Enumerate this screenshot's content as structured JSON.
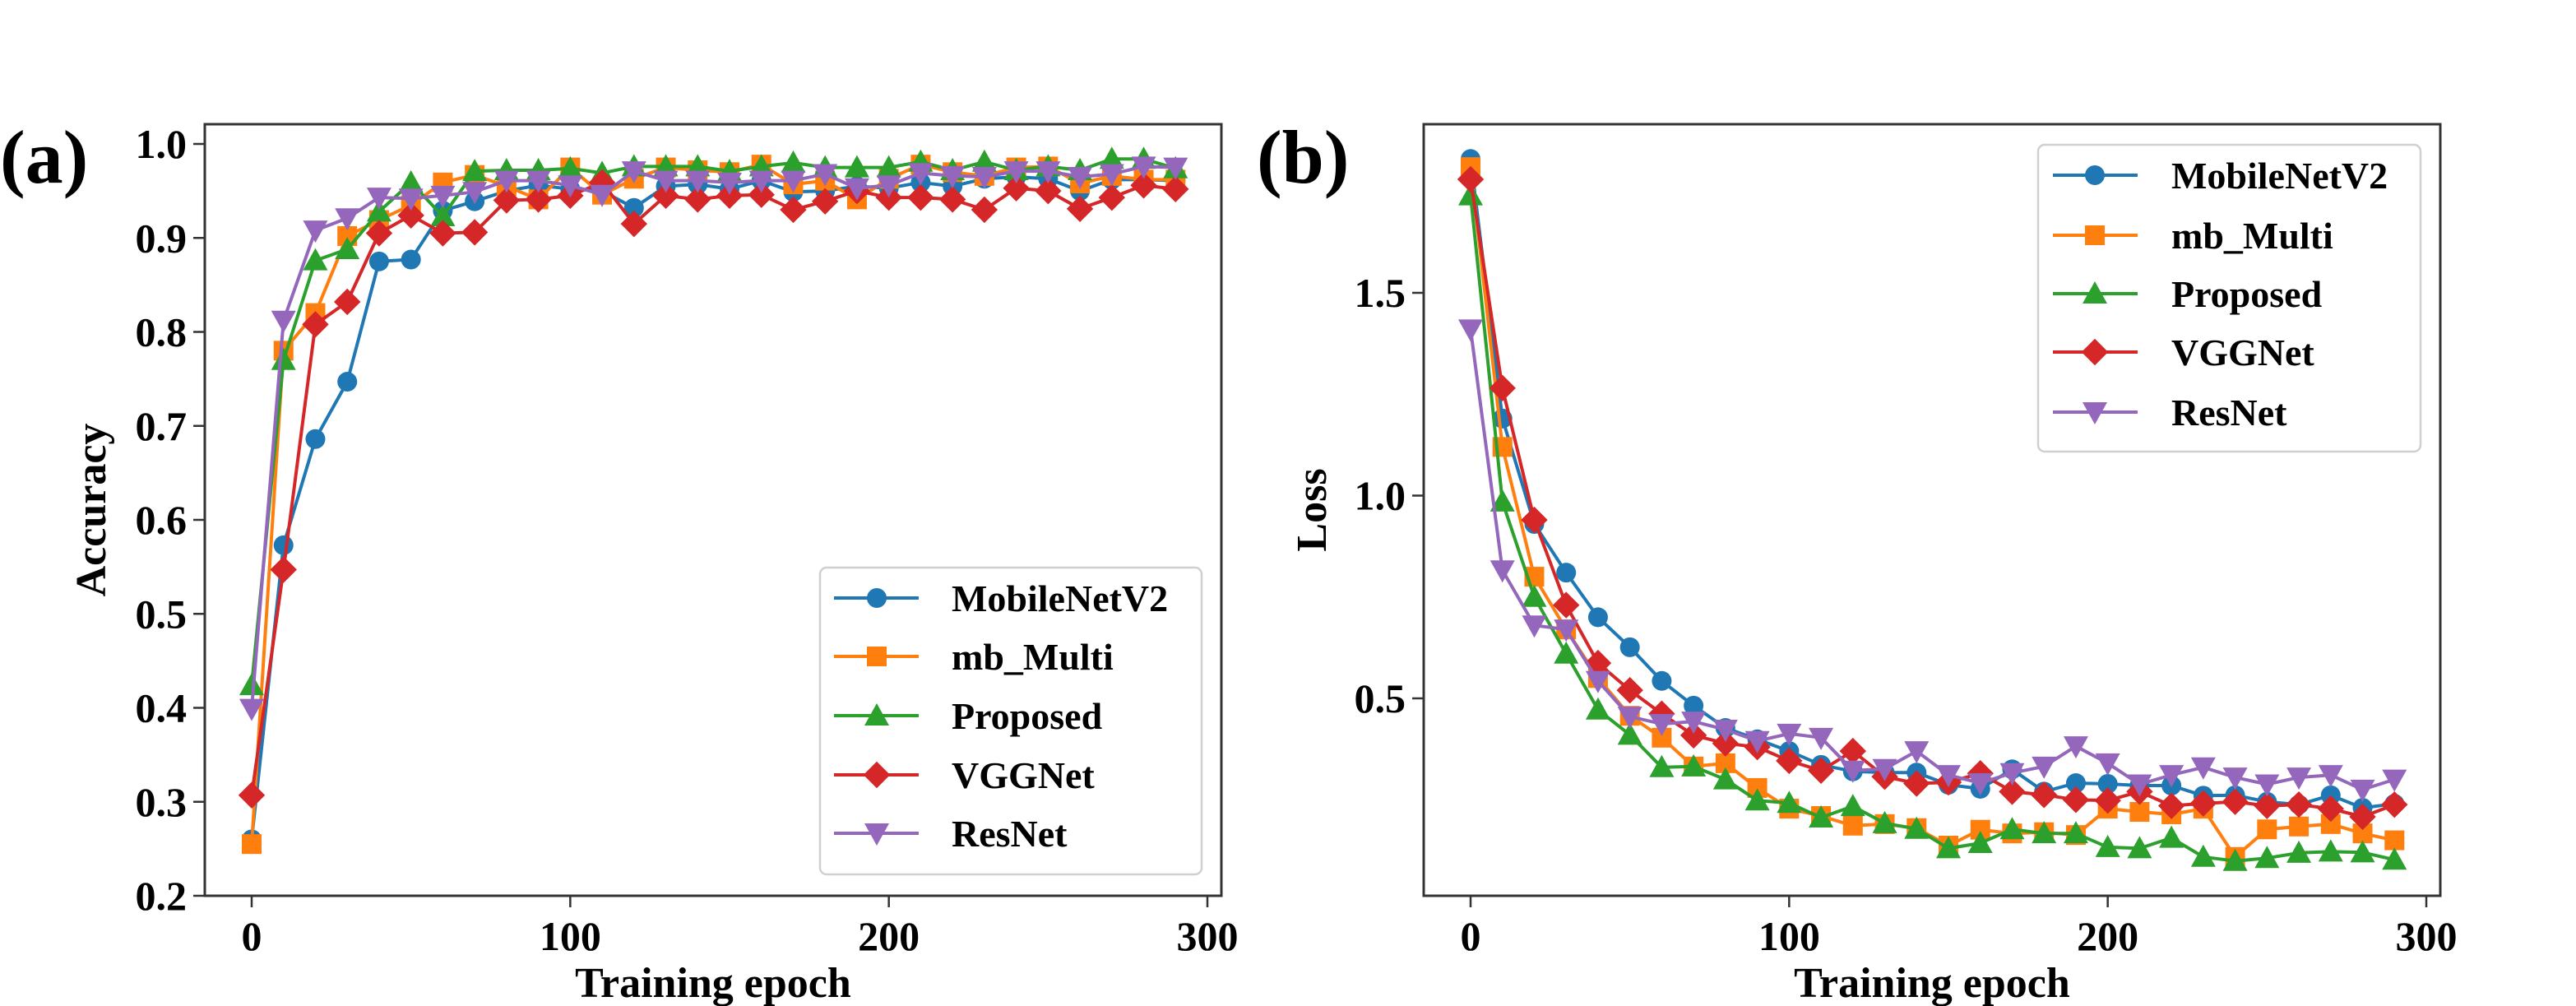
{
  "figure": {
    "panels": [
      "(a)",
      "(b)"
    ]
  },
  "colors": {
    "MobileNetV2": "#1f77b4",
    "mb_Multi": "#ff7f0e",
    "Proposed": "#2ca02c",
    "VGGNet": "#d62728",
    "ResNet": "#9467bd"
  },
  "chart_data": [
    {
      "panel_label": "(a)",
      "type": "line",
      "title": "",
      "xlabel": "Training epoch",
      "ylabel": "Accuracy",
      "xlim": [
        -15,
        305
      ],
      "ylim": [
        0.2,
        1.02
      ],
      "xticks": [
        0,
        100,
        200,
        300
      ],
      "xtick_labels": [
        "0",
        "100",
        "200",
        "300"
      ],
      "yticks": [
        0.2,
        0.3,
        0.4,
        0.5,
        0.6,
        0.7,
        0.8,
        0.9,
        1.0
      ],
      "ytick_labels": [
        "0.2",
        "0.3",
        "0.4",
        "0.5",
        "0.6",
        "0.7",
        "0.8",
        "0.9",
        "1.0"
      ],
      "grid": false,
      "legend_position": "lower-right",
      "x": [
        0,
        10,
        20,
        30,
        40,
        50,
        60,
        70,
        80,
        90,
        100,
        110,
        120,
        130,
        140,
        150,
        160,
        170,
        180,
        190,
        200,
        210,
        220,
        230,
        240,
        250,
        260,
        270,
        280,
        290
      ],
      "series": [
        {
          "name": "MobileNetV2",
          "marker": "circle",
          "values": [
            0.26,
            0.573,
            0.686,
            0.747,
            0.875,
            0.877,
            0.929,
            0.939,
            0.95,
            0.956,
            0.952,
            0.95,
            0.932,
            0.955,
            0.957,
            0.952,
            0.961,
            0.949,
            0.95,
            0.955,
            0.953,
            0.959,
            0.955,
            0.963,
            0.965,
            0.963,
            0.95,
            0.962,
            0.962,
            0.961
          ]
        },
        {
          "name": "mb_Multi",
          "marker": "square",
          "values": [
            0.255,
            0.78,
            0.82,
            0.902,
            0.919,
            0.935,
            0.959,
            0.967,
            0.955,
            0.941,
            0.975,
            0.946,
            0.963,
            0.975,
            0.972,
            0.97,
            0.978,
            0.957,
            0.961,
            0.941,
            0.963,
            0.978,
            0.97,
            0.966,
            0.975,
            0.976,
            0.958,
            0.966,
            0.962,
            0.962
          ]
        },
        {
          "name": "Proposed",
          "marker": "triangle-up",
          "values": [
            0.424,
            0.77,
            0.876,
            0.888,
            0.928,
            0.959,
            0.923,
            0.971,
            0.972,
            0.972,
            0.974,
            0.969,
            0.976,
            0.976,
            0.976,
            0.971,
            0.976,
            0.98,
            0.975,
            0.975,
            0.975,
            0.981,
            0.972,
            0.981,
            0.972,
            0.976,
            0.972,
            0.984,
            0.984,
            0.974
          ]
        },
        {
          "name": "VGGNet",
          "marker": "diamond",
          "values": [
            0.307,
            0.547,
            0.808,
            0.832,
            0.905,
            0.924,
            0.905,
            0.906,
            0.94,
            0.941,
            0.945,
            0.959,
            0.915,
            0.945,
            0.941,
            0.945,
            0.946,
            0.93,
            0.939,
            0.95,
            0.943,
            0.943,
            0.941,
            0.93,
            0.953,
            0.95,
            0.931,
            0.943,
            0.956,
            0.952
          ]
        },
        {
          "name": "ResNet",
          "marker": "triangle-down",
          "values": [
            0.399,
            0.812,
            0.908,
            0.921,
            0.943,
            0.942,
            0.945,
            0.949,
            0.961,
            0.961,
            0.956,
            0.946,
            0.971,
            0.961,
            0.961,
            0.959,
            0.961,
            0.961,
            0.968,
            0.953,
            0.956,
            0.969,
            0.966,
            0.965,
            0.971,
            0.971,
            0.965,
            0.968,
            0.976,
            0.975
          ]
        }
      ]
    },
    {
      "panel_label": "(b)",
      "type": "line",
      "title": "",
      "xlabel": "Training epoch",
      "ylabel": "Loss",
      "xlim": [
        -15,
        305
      ],
      "ylim": [
        0.015,
        1.916
      ],
      "xticks": [
        0,
        100,
        200,
        300
      ],
      "xtick_labels": [
        "0",
        "100",
        "200",
        "300"
      ],
      "yticks": [
        0.5,
        1.0,
        1.5
      ],
      "ytick_labels": [
        "0.5",
        "1.0",
        "1.5"
      ],
      "grid": false,
      "legend_position": "upper-right",
      "x": [
        0,
        10,
        20,
        30,
        40,
        50,
        60,
        70,
        80,
        90,
        100,
        110,
        120,
        130,
        140,
        150,
        160,
        170,
        180,
        190,
        200,
        210,
        220,
        230,
        240,
        250,
        260,
        270,
        280,
        290
      ],
      "series": [
        {
          "name": "MobileNetV2",
          "marker": "circle",
          "values": [
            1.83,
            1.19,
            0.93,
            0.81,
            0.7,
            0.626,
            0.543,
            0.482,
            0.427,
            0.399,
            0.37,
            0.336,
            0.32,
            0.317,
            0.317,
            0.287,
            0.277,
            0.325,
            0.27,
            0.291,
            0.289,
            0.285,
            0.285,
            0.26,
            0.261,
            0.245,
            0.238,
            0.261,
            0.23,
            0.24
          ]
        },
        {
          "name": "mb_Multi",
          "marker": "square",
          "values": [
            1.81,
            1.12,
            0.8,
            0.67,
            0.55,
            0.457,
            0.403,
            0.332,
            0.34,
            0.279,
            0.228,
            0.21,
            0.186,
            0.19,
            0.18,
            0.137,
            0.176,
            0.167,
            0.17,
            0.163,
            0.228,
            0.22,
            0.214,
            0.228,
            0.109,
            0.177,
            0.184,
            0.19,
            0.167,
            0.15
          ]
        },
        {
          "name": "Proposed",
          "marker": "triangle-up",
          "values": [
            1.74,
            0.985,
            0.75,
            0.61,
            0.472,
            0.41,
            0.33,
            0.332,
            0.3,
            0.248,
            0.242,
            0.206,
            0.234,
            0.192,
            0.178,
            0.13,
            0.143,
            0.177,
            0.167,
            0.167,
            0.133,
            0.13,
            0.156,
            0.109,
            0.099,
            0.106,
            0.119,
            0.122,
            0.12,
            0.102
          ]
        },
        {
          "name": "VGGNet",
          "marker": "diamond",
          "values": [
            1.78,
            1.265,
            0.94,
            0.73,
            0.587,
            0.52,
            0.462,
            0.409,
            0.389,
            0.38,
            0.346,
            0.322,
            0.37,
            0.307,
            0.29,
            0.293,
            0.315,
            0.27,
            0.262,
            0.25,
            0.248,
            0.27,
            0.235,
            0.241,
            0.245,
            0.235,
            0.238,
            0.228,
            0.208,
            0.238
          ]
        },
        {
          "name": "ResNet",
          "marker": "triangle-down",
          "values": [
            1.41,
            0.816,
            0.68,
            0.67,
            0.543,
            0.455,
            0.437,
            0.443,
            0.423,
            0.395,
            0.413,
            0.403,
            0.322,
            0.326,
            0.37,
            0.311,
            0.291,
            0.316,
            0.332,
            0.382,
            0.34,
            0.288,
            0.311,
            0.33,
            0.305,
            0.288,
            0.305,
            0.311,
            0.275,
            0.3
          ]
        }
      ]
    }
  ]
}
